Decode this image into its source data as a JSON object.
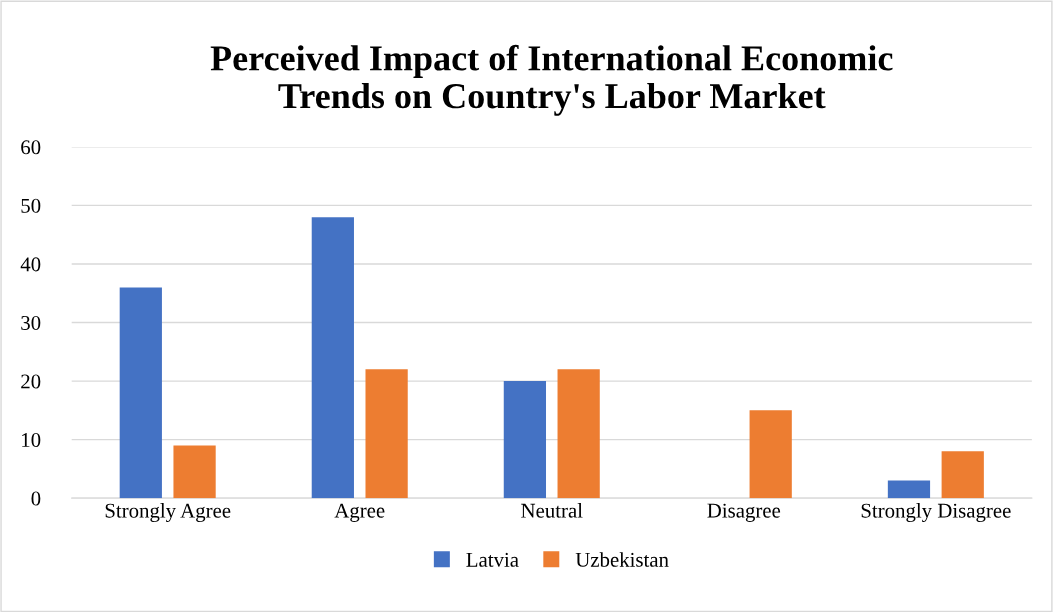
{
  "chart_data": {
    "type": "bar",
    "title": "Perceived Impact of International Economic\nTrends on Country's Labor Market",
    "categories": [
      "Strongly Agree",
      "Agree",
      "Neutral",
      "Disagree",
      "Strongly Disagree"
    ],
    "series": [
      {
        "name": "Latvia",
        "color": "#4472c4",
        "values": [
          36,
          48,
          20,
          0,
          3
        ]
      },
      {
        "name": "Uzbekistan",
        "color": "#ed7d31",
        "values": [
          9,
          22,
          22,
          15,
          8
        ]
      }
    ],
    "ylim": [
      0,
      60
    ],
    "yticks": [
      0,
      10,
      20,
      30,
      40,
      50,
      60
    ],
    "grid": "y",
    "legend": "bottom"
  }
}
